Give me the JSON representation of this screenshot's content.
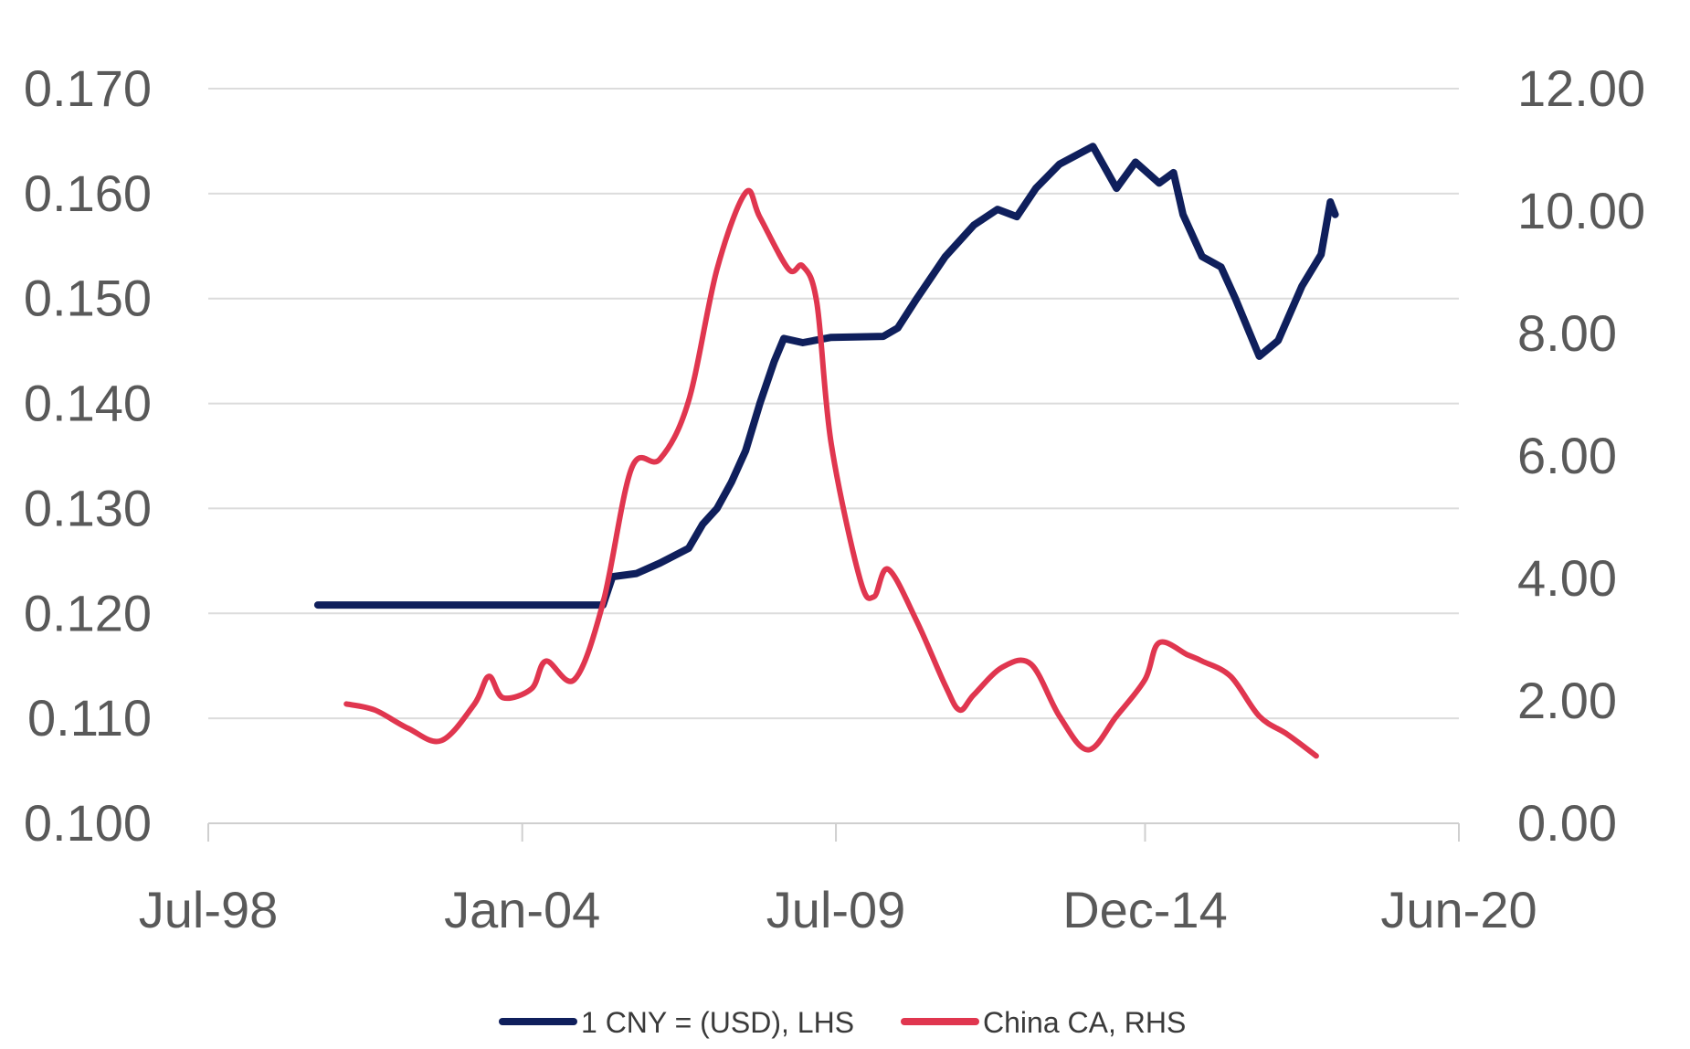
{
  "chart_data": {
    "type": "line",
    "x_axis": {
      "type": "date",
      "range": [
        "1998-07-01",
        "2020-06-01"
      ],
      "tick_labels": [
        "Jul-98",
        "Jan-04",
        "Jul-09",
        "Dec-14",
        "Jun-20"
      ],
      "tick_dates": [
        "1998-07-01",
        "2004-01-01",
        "2009-07-01",
        "2014-12-01",
        "2020-06-01"
      ]
    },
    "y_axis_left": {
      "range": [
        0.1,
        0.17
      ],
      "ticks": [
        0.1,
        0.11,
        0.12,
        0.13,
        0.14,
        0.15,
        0.16,
        0.17
      ],
      "tick_labels": [
        "0.100",
        "0.110",
        "0.120",
        "0.130",
        "0.140",
        "0.150",
        "0.160",
        "0.170"
      ]
    },
    "y_axis_right": {
      "range": [
        0,
        12
      ],
      "ticks": [
        0,
        2,
        4,
        6,
        8,
        10,
        12
      ],
      "tick_labels": [
        "0.00",
        "2.00",
        "4.00",
        "6.00",
        "8.00",
        "10.00",
        "12.00"
      ]
    },
    "grid": "horizontal",
    "legend_position": "bottom",
    "series": [
      {
        "name": "1  CNY = (USD), LHS",
        "axis": "left",
        "color": "#0f1f5c",
        "points": [
          [
            "2000-06-01",
            0.1208
          ],
          [
            "2002-01-01",
            0.1208
          ],
          [
            "2004-01-01",
            0.1208
          ],
          [
            "2005-06-01",
            0.1208
          ],
          [
            "2005-08-01",
            0.1235
          ],
          [
            "2006-01-01",
            0.1238
          ],
          [
            "2006-06-01",
            0.1248
          ],
          [
            "2006-12-01",
            0.1262
          ],
          [
            "2007-03-01",
            0.1285
          ],
          [
            "2007-06-01",
            0.13
          ],
          [
            "2007-09-01",
            0.1325
          ],
          [
            "2007-12-01",
            0.1355
          ],
          [
            "2008-03-01",
            0.14
          ],
          [
            "2008-06-01",
            0.144
          ],
          [
            "2008-08-01",
            0.1462
          ],
          [
            "2008-12-01",
            0.1458
          ],
          [
            "2009-06-01",
            0.1463
          ],
          [
            "2010-05-01",
            0.1464
          ],
          [
            "2010-08-01",
            0.1472
          ],
          [
            "2010-12-01",
            0.15
          ],
          [
            "2011-06-01",
            0.154
          ],
          [
            "2011-12-01",
            0.157
          ],
          [
            "2012-05-01",
            0.1585
          ],
          [
            "2012-09-01",
            0.1578
          ],
          [
            "2013-01-01",
            0.1605
          ],
          [
            "2013-06-01",
            0.1628
          ],
          [
            "2014-01-01",
            0.1645
          ],
          [
            "2014-06-01",
            0.1605
          ],
          [
            "2014-10-01",
            0.163
          ],
          [
            "2015-03-01",
            0.161
          ],
          [
            "2015-06-01",
            0.162
          ],
          [
            "2015-08-01",
            0.158
          ],
          [
            "2015-12-01",
            0.154
          ],
          [
            "2016-04-01",
            0.153
          ],
          [
            "2016-07-01",
            0.15
          ],
          [
            "2016-12-01",
            0.1445
          ],
          [
            "2017-04-01",
            0.146
          ],
          [
            "2017-09-01",
            0.1512
          ],
          [
            "2018-01-01",
            0.1542
          ],
          [
            "2018-03-01",
            0.1592
          ],
          [
            "2018-04-01",
            0.158
          ]
        ]
      },
      {
        "name": "China CA, RHS",
        "axis": "right",
        "color": "#e0364f",
        "points": [
          [
            "2000-12-01",
            1.95
          ],
          [
            "2001-06-01",
            1.85
          ],
          [
            "2002-01-01",
            1.55
          ],
          [
            "2002-08-01",
            1.35
          ],
          [
            "2003-03-01",
            1.95
          ],
          [
            "2003-06-01",
            2.4
          ],
          [
            "2003-09-01",
            2.05
          ],
          [
            "2004-03-01",
            2.2
          ],
          [
            "2004-06-01",
            2.65
          ],
          [
            "2004-12-01",
            2.35
          ],
          [
            "2005-06-01",
            3.6
          ],
          [
            "2005-12-01",
            5.8
          ],
          [
            "2006-06-01",
            5.95
          ],
          [
            "2006-12-01",
            6.9
          ],
          [
            "2007-06-01",
            9.05
          ],
          [
            "2007-12-01",
            10.3
          ],
          [
            "2008-03-01",
            9.9
          ],
          [
            "2008-09-01",
            9.05
          ],
          [
            "2008-12-01",
            9.1
          ],
          [
            "2009-03-01",
            8.5
          ],
          [
            "2009-06-01",
            6.2
          ],
          [
            "2009-12-01",
            4.0
          ],
          [
            "2010-03-01",
            3.7
          ],
          [
            "2010-06-01",
            4.15
          ],
          [
            "2010-12-01",
            3.3
          ],
          [
            "2011-06-01",
            2.25
          ],
          [
            "2011-09-01",
            1.85
          ],
          [
            "2011-12-01",
            2.1
          ],
          [
            "2012-06-01",
            2.55
          ],
          [
            "2012-12-01",
            2.6
          ],
          [
            "2013-06-01",
            1.75
          ],
          [
            "2013-12-01",
            1.2
          ],
          [
            "2014-06-01",
            1.75
          ],
          [
            "2014-12-01",
            2.35
          ],
          [
            "2015-03-01",
            2.95
          ],
          [
            "2015-09-01",
            2.75
          ],
          [
            "2015-12-01",
            2.65
          ],
          [
            "2016-06-01",
            2.4
          ],
          [
            "2016-12-01",
            1.75
          ],
          [
            "2017-06-01",
            1.45
          ],
          [
            "2017-12-01",
            1.1
          ]
        ]
      }
    ]
  }
}
